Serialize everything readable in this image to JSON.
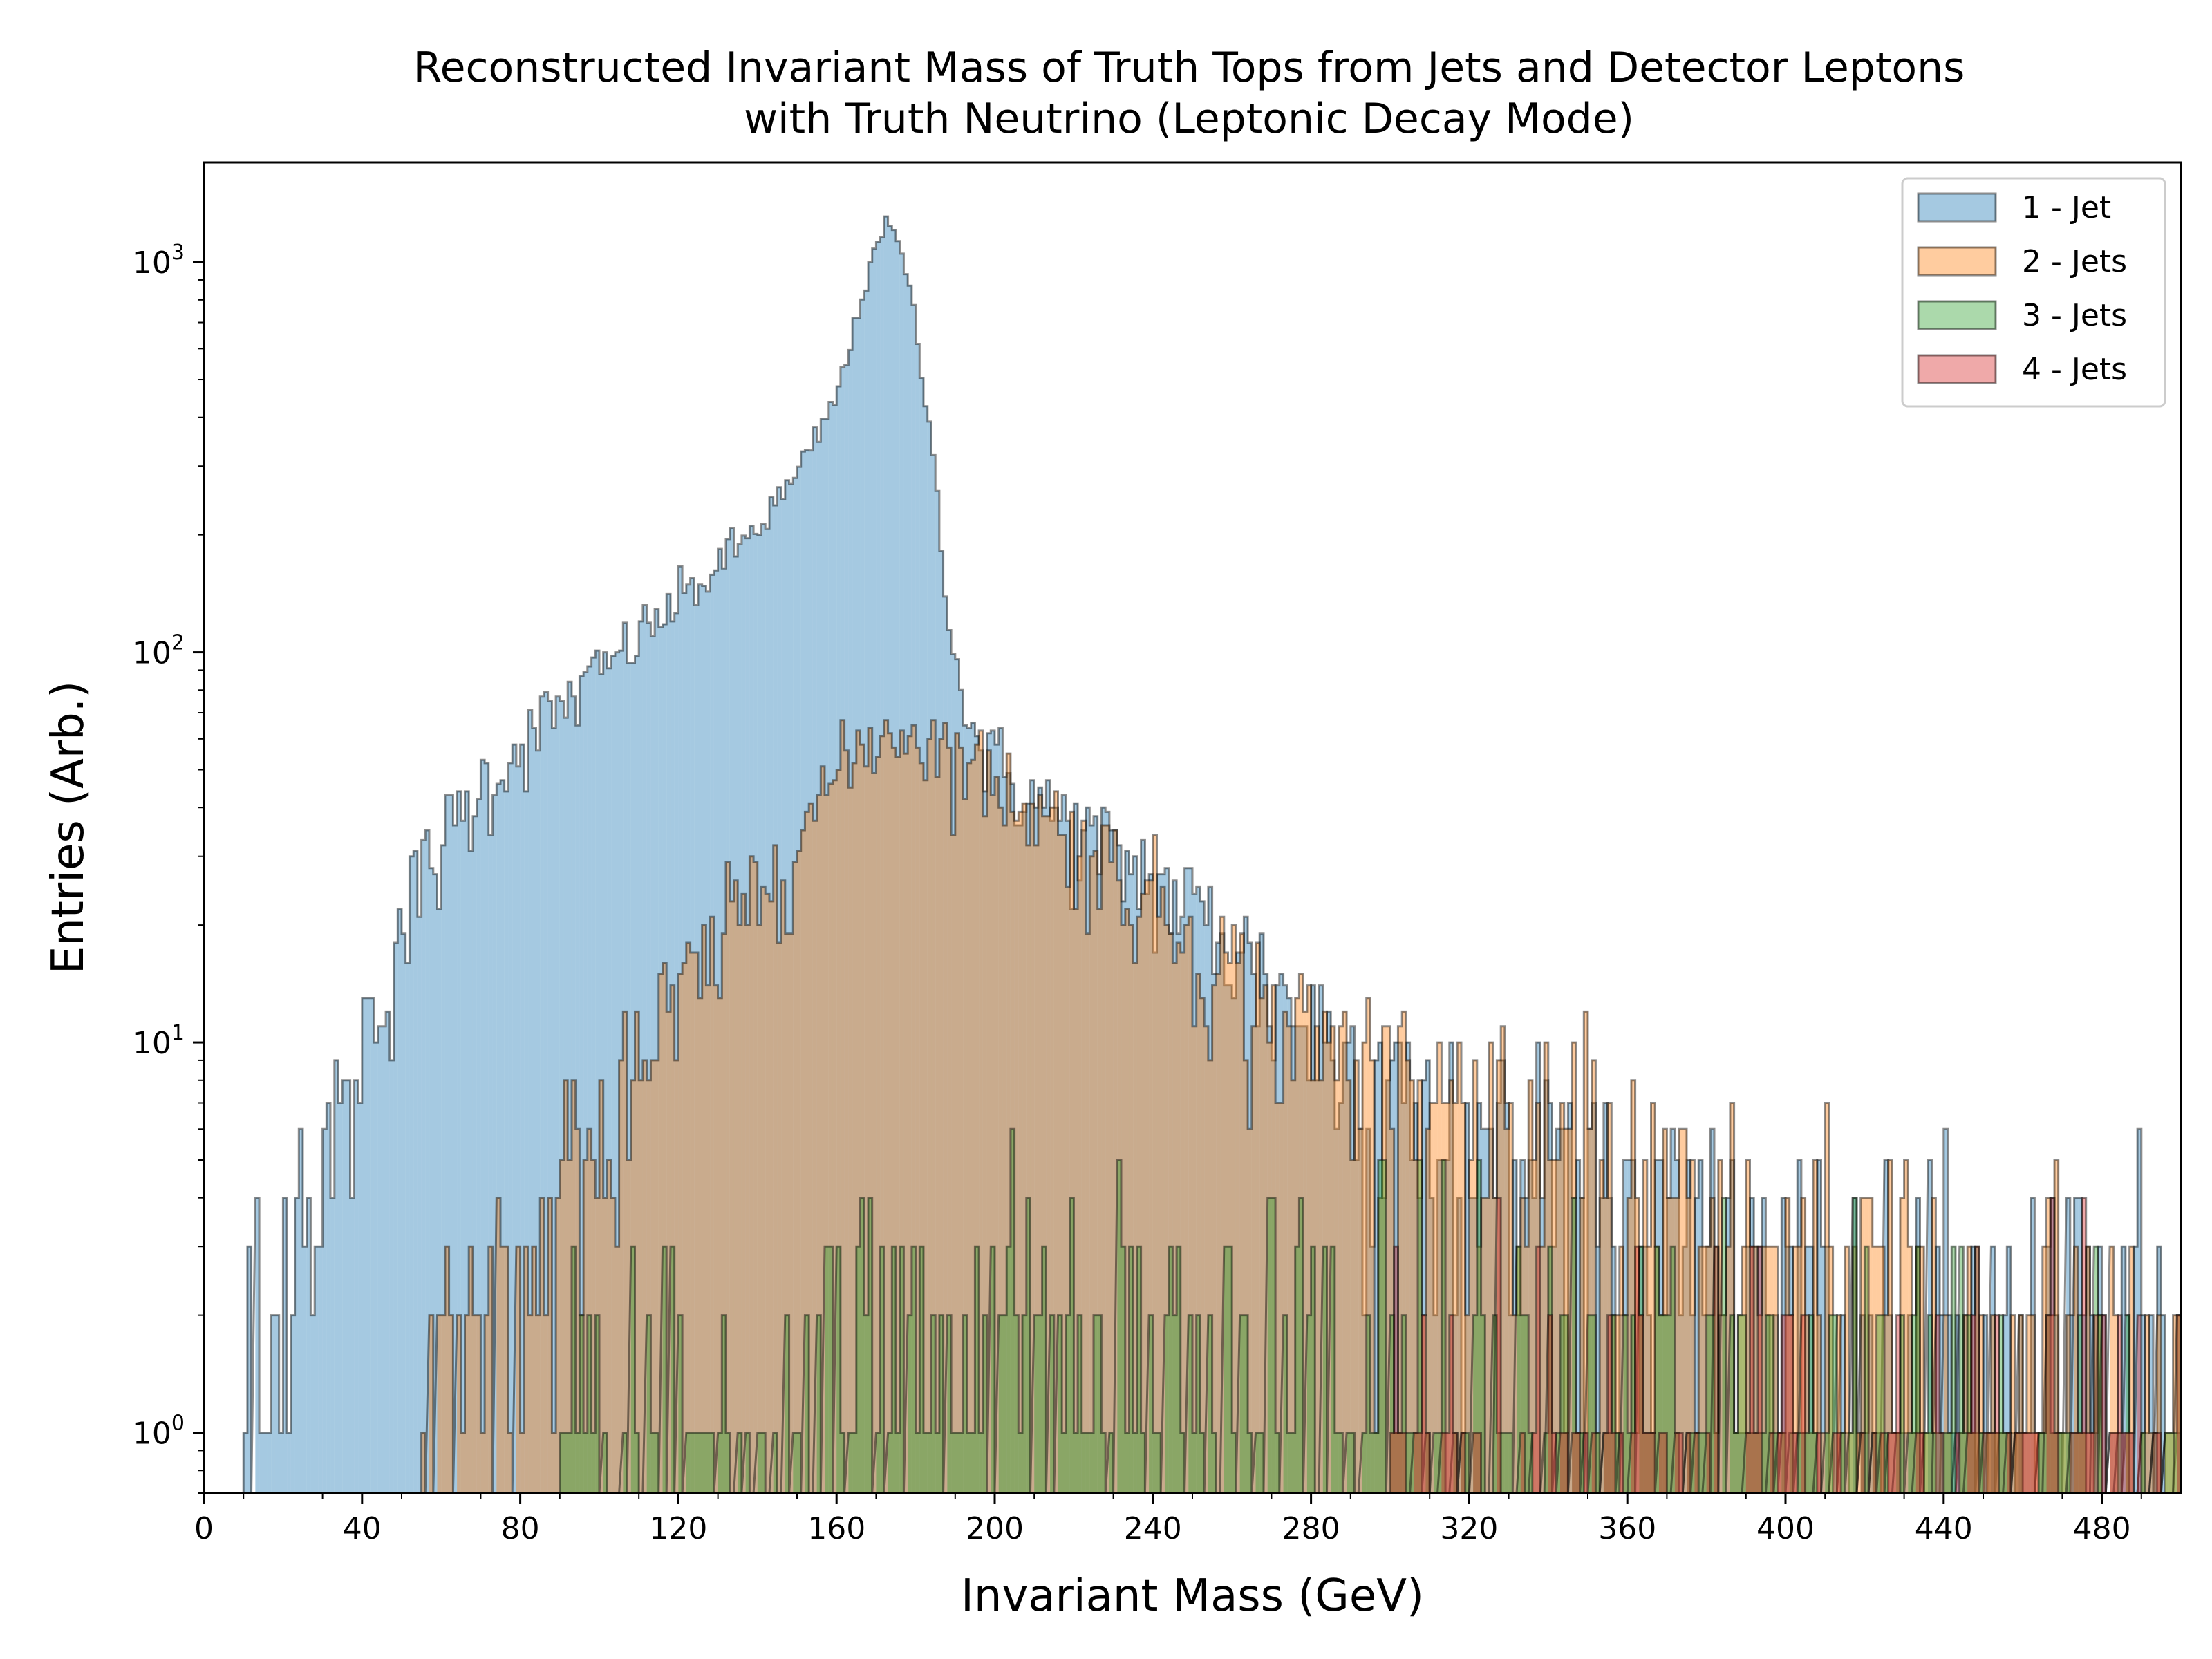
{
  "chart_data": {
    "type": "histogram",
    "title": "Reconstructed Invariant Mass of Truth Tops from Jets and Detector Leptons",
    "subtitle": "with Truth Neutrino (Leptonic Decay Mode)",
    "xlabel": "Invariant Mass (GeV)",
    "ylabel": "Entries (Arb.)",
    "xlim": [
      0,
      500
    ],
    "ylim": [
      0.7,
      1800
    ],
    "yscale": "log",
    "x_ticks": [
      "0",
      "40",
      "80",
      "120",
      "160",
      "200",
      "240",
      "280",
      "320",
      "360",
      "400",
      "440",
      "480"
    ],
    "y_ticks": [
      {
        "base": "10",
        "exp": "0",
        "value": 1
      },
      {
        "base": "10",
        "exp": "1",
        "value": 10
      },
      {
        "base": "10",
        "exp": "2",
        "value": 100
      },
      {
        "base": "10",
        "exp": "3",
        "value": 1000
      }
    ],
    "legend_position": "top-right",
    "bin_width": 1,
    "series": [
      {
        "name": "1 - Jet",
        "color": "#1f77b4",
        "anchors": [
          [
            10,
            1
          ],
          [
            20,
            2
          ],
          [
            30,
            5
          ],
          [
            40,
            10
          ],
          [
            50,
            20
          ],
          [
            60,
            32
          ],
          [
            70,
            45
          ],
          [
            80,
            58
          ],
          [
            90,
            72
          ],
          [
            100,
            88
          ],
          [
            110,
            110
          ],
          [
            120,
            135
          ],
          [
            130,
            165
          ],
          [
            140,
            210
          ],
          [
            150,
            280
          ],
          [
            160,
            450
          ],
          [
            165,
            700
          ],
          [
            170,
            1150
          ],
          [
            173,
            1250
          ],
          [
            176,
            1100
          ],
          [
            180,
            700
          ],
          [
            185,
            280
          ],
          [
            190,
            95
          ],
          [
            195,
            60
          ],
          [
            200,
            52
          ],
          [
            210,
            42
          ],
          [
            220,
            35
          ],
          [
            230,
            30
          ],
          [
            240,
            26
          ],
          [
            250,
            22
          ],
          [
            260,
            18
          ],
          [
            270,
            14
          ],
          [
            280,
            11
          ],
          [
            290,
            9
          ],
          [
            300,
            8
          ],
          [
            320,
            6
          ],
          [
            340,
            5
          ],
          [
            360,
            3.5
          ],
          [
            380,
            3
          ],
          [
            400,
            2.5
          ],
          [
            440,
            2
          ],
          [
            480,
            1.6
          ],
          [
            500,
            1.4
          ]
        ]
      },
      {
        "name": "2 - Jets",
        "color": "#ff7f0e",
        "anchors": [
          [
            55,
            1
          ],
          [
            70,
            2
          ],
          [
            80,
            3
          ],
          [
            90,
            4
          ],
          [
            100,
            6
          ],
          [
            110,
            9
          ],
          [
            120,
            12
          ],
          [
            130,
            17
          ],
          [
            140,
            25
          ],
          [
            150,
            35
          ],
          [
            160,
            48
          ],
          [
            170,
            62
          ],
          [
            180,
            62
          ],
          [
            190,
            55
          ],
          [
            200,
            47
          ],
          [
            210,
            40
          ],
          [
            220,
            33
          ],
          [
            230,
            28
          ],
          [
            240,
            23
          ],
          [
            250,
            19
          ],
          [
            260,
            15
          ],
          [
            270,
            12
          ],
          [
            280,
            10
          ],
          [
            290,
            9
          ],
          [
            300,
            8
          ],
          [
            320,
            6.5
          ],
          [
            340,
            5
          ],
          [
            360,
            4
          ],
          [
            380,
            3
          ],
          [
            400,
            2.5
          ],
          [
            440,
            1.8
          ],
          [
            480,
            1.5
          ],
          [
            500,
            1.3
          ]
        ]
      },
      {
        "name": "3 - Jets",
        "color": "#2ca02c",
        "anchors": [
          [
            90,
            1
          ],
          [
            130,
            1
          ],
          [
            150,
            1.2
          ],
          [
            170,
            1.8
          ],
          [
            190,
            1.8
          ],
          [
            220,
            1.7
          ],
          [
            260,
            1.5
          ],
          [
            300,
            1.4
          ],
          [
            360,
            1.3
          ],
          [
            420,
            1.2
          ],
          [
            500,
            1.1
          ]
        ]
      },
      {
        "name": "4 - Jets",
        "color": "#d62728",
        "anchors": [
          [
            300,
            0.6
          ],
          [
            400,
            0.7
          ],
          [
            500,
            0.8
          ]
        ]
      }
    ]
  }
}
